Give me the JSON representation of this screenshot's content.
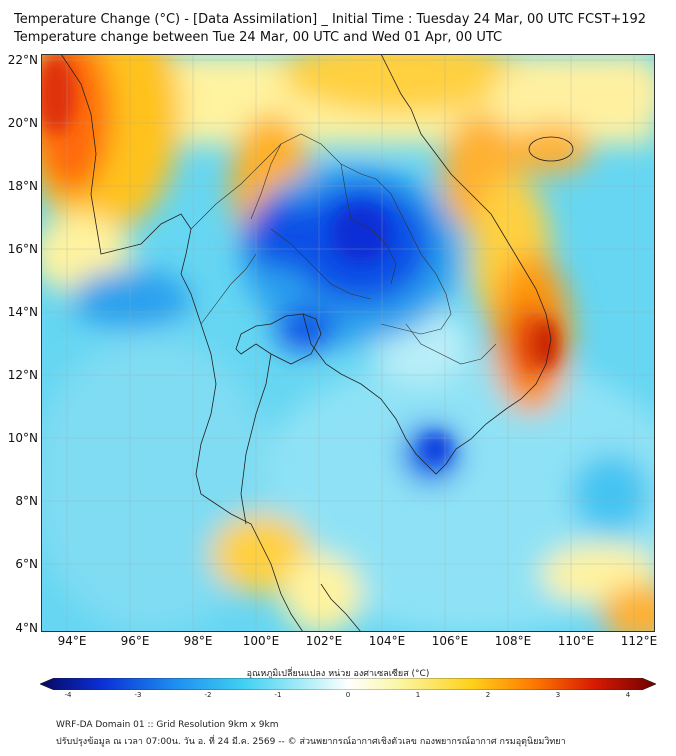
{
  "title_line1": "Temperature Change (°C) - [Data Assimilation] _ Initial Time : Tuesday 24 Mar, 00 UTC FCST+192",
  "title_line2": "Temperature change between Tue 24 Mar, 00 UTC and Wed 01 Apr, 00 UTC",
  "map": {
    "lon_range": [
      93,
      112.5
    ],
    "lat_range": [
      4,
      22.2
    ],
    "lat_ticks": [
      "22°N",
      "20°N",
      "18°N",
      "16°N",
      "14°N",
      "12°N",
      "10°N",
      "8°N",
      "6°N",
      "4°N"
    ],
    "lon_ticks": [
      "94°E",
      "96°E",
      "98°E",
      "100°E",
      "102°E",
      "104°E",
      "106°E",
      "108°E",
      "110°E",
      "112°E"
    ],
    "grid": true
  },
  "colorbar": {
    "label": "อุณหภูมิเปลี่ยนแปลง หน่วย องศาเซลเซียส (°C)",
    "range": [
      -4,
      4
    ],
    "ticks": [
      "-4",
      "-3",
      "-2",
      "-1",
      "0",
      "1",
      "2",
      "3",
      "4"
    ],
    "colors": [
      "#08085e",
      "#0a2fd6",
      "#1e8ff0",
      "#3fd0f2",
      "#b7f0f8",
      "#ffffff",
      "#fbf6a8",
      "#ffd11a",
      "#ff7a00",
      "#d81a00",
      "#6e0000"
    ]
  },
  "footer": {
    "line1": "WRF-DA Domain 01 :: Grid Resolution 9km x 9km",
    "line2": "ปรับปรุงข้อมูล ณ เวลา 07:00น. วัน อ. ที่ 24 มี.ค. 2569 -- © ส่วนพยากรณ์อากาศเชิงตัวเลข กองพยากรณ์อากาศ กรมอุตุนิยมวิทยา"
  }
}
